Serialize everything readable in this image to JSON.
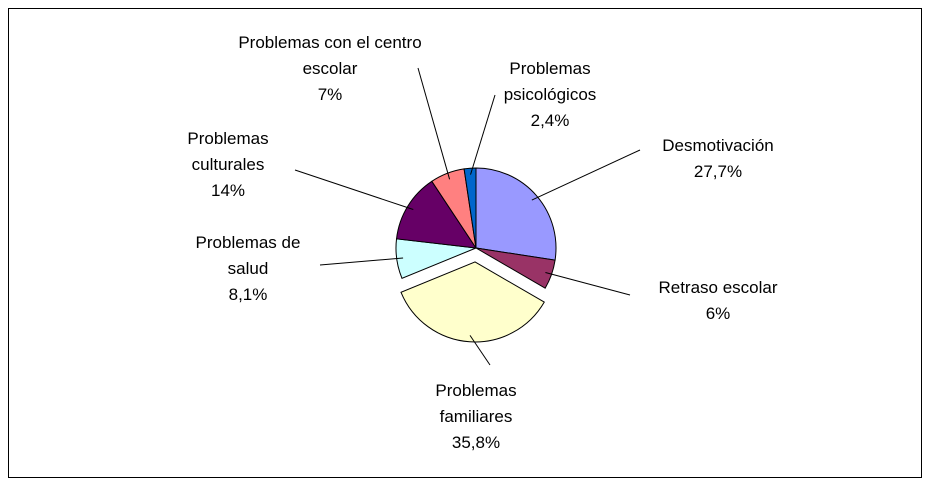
{
  "chart_data": {
    "type": "pie",
    "categories": [
      "Desmotivación",
      "Retraso escolar",
      "Problemas familiares",
      "Problemas de salud",
      "Problemas culturales",
      "Problemas con el centro escolar",
      "Problemas psicológicos"
    ],
    "values": [
      27.7,
      6,
      35.8,
      8.1,
      14,
      7,
      2.4
    ],
    "value_labels": [
      "27,7%",
      "6%",
      "35,8%",
      "8,1%",
      "14%",
      "7%",
      "2,4%"
    ],
    "colors": [
      "#9999ff",
      "#993366",
      "#ffffcc",
      "#ccffff",
      "#660066",
      "#ff8080",
      "#0066cc"
    ],
    "exploded": [
      2
    ]
  }
}
